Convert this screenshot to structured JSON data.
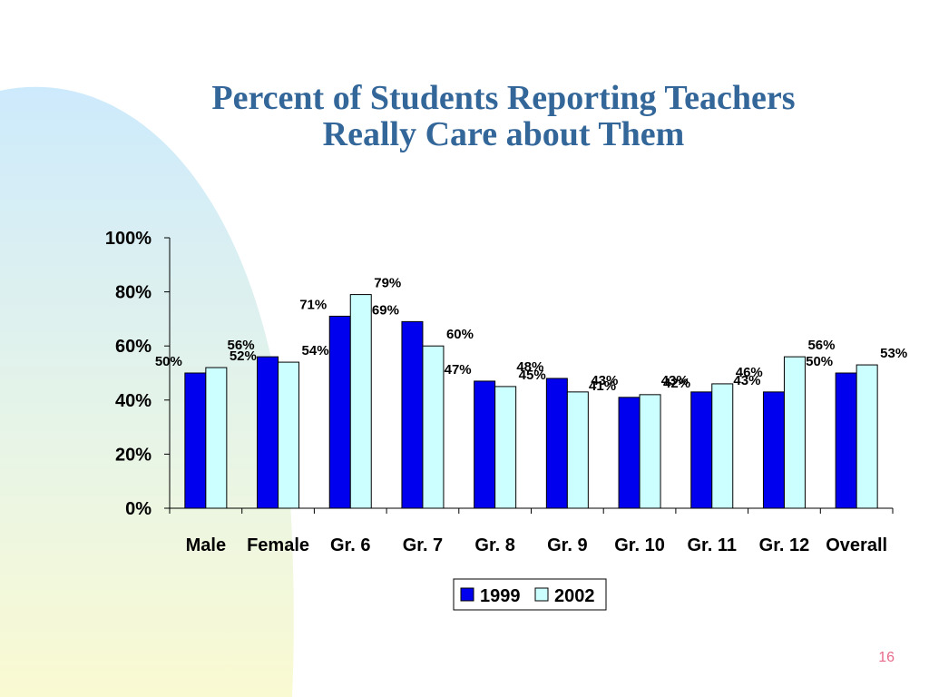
{
  "slide": {
    "title_line1": "Percent of Students Reporting Teachers",
    "title_line2": "Really Care about Them",
    "page_number": "16"
  },
  "colors": {
    "title": "#336699",
    "bar_1999": "#0000ee",
    "bar_2002": "#ccffff",
    "page_number": "#e86a8a"
  },
  "chart_data": {
    "type": "bar",
    "categories": [
      "Male",
      "Female",
      "Gr. 6",
      "Gr. 7",
      "Gr. 8",
      "Gr. 9",
      "Gr. 10",
      "Gr. 11",
      "Gr. 12",
      "Overall"
    ],
    "series": [
      {
        "name": "1999",
        "values": [
          50,
          56,
          71,
          69,
          47,
          48,
          41,
          43,
          43,
          50
        ]
      },
      {
        "name": "2002",
        "values": [
          52,
          54,
          79,
          60,
          45,
          43,
          42,
          46,
          56,
          53
        ]
      }
    ],
    "value_labels": [
      [
        "50%",
        "56%",
        "71%",
        "69%",
        "47%",
        "48%",
        "41%",
        "43%",
        "43%",
        "50%"
      ],
      [
        "52%",
        "54%",
        "79%",
        "60%",
        "45%",
        "43%",
        "42%",
        "46%",
        "56%",
        "53%"
      ]
    ],
    "yticks": [
      "0%",
      "20%",
      "40%",
      "60%",
      "80%",
      "100%"
    ],
    "ylim": [
      0,
      100
    ],
    "grid": false,
    "legend_position": "bottom-center",
    "xlabel": "",
    "ylabel": ""
  }
}
